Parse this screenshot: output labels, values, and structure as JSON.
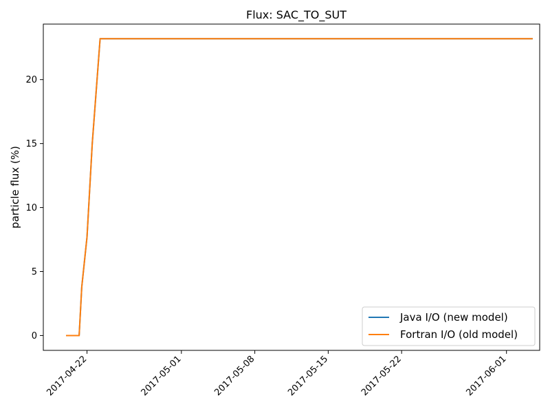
{
  "chart_data": {
    "type": "line",
    "title": "Flux: SAC_TO_SUT",
    "xlabel": "",
    "ylabel": "particle flux (%)",
    "xlim": [
      "2017-04-17T20:00",
      "2017-06-04T04:00"
    ],
    "ylim": [
      -1.16,
      24.34
    ],
    "x_ticks": [
      "2017-04-22",
      "2017-05-01",
      "2017-05-08",
      "2017-05-15",
      "2017-05-22",
      "2017-06-01"
    ],
    "y_ticks": [
      0,
      5,
      10,
      15,
      20
    ],
    "grid": false,
    "legend_position": "lower-right",
    "series": [
      {
        "name": "Java I/O (new model)",
        "color": "#1f77b4",
        "x": [
          "2017-04-20T00:00",
          "2017-04-21T06:00",
          "2017-04-21T12:00",
          "2017-04-22T00:00",
          "2017-04-22T12:00",
          "2017-04-23T06:00",
          "2017-06-03T12:00"
        ],
        "y": [
          0,
          0,
          3.8,
          7.7,
          15,
          23.2,
          23.2
        ]
      },
      {
        "name": "Fortran I/O (old model)",
        "color": "#ff7f0e",
        "x": [
          "2017-04-20T00:00",
          "2017-04-21T06:00",
          "2017-04-21T12:00",
          "2017-04-22T00:00",
          "2017-04-22T12:00",
          "2017-04-23T06:00",
          "2017-06-03T12:00"
        ],
        "y": [
          0,
          0,
          3.8,
          7.7,
          15,
          23.2,
          23.2
        ]
      }
    ]
  }
}
